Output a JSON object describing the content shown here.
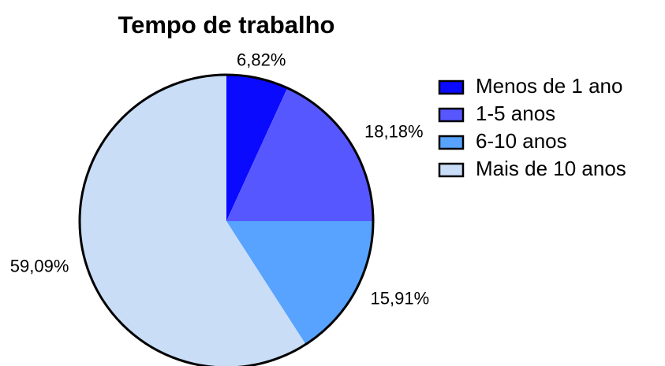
{
  "chart_data": {
    "type": "pie",
    "title": "Tempo de trabalho",
    "categories": [
      "Menos de 1 ano",
      "1-5 anos",
      "6-10 anos",
      "Mais de 10 anos"
    ],
    "values": [
      6.82,
      18.18,
      15.91,
      59.09
    ],
    "value_labels": [
      "6,82%",
      "18,18%",
      "15,91%",
      "59,09%"
    ],
    "colors": [
      "#0a0aff",
      "#5757ff",
      "#57a3ff",
      "#c9ddf7"
    ],
    "legend": "right"
  }
}
